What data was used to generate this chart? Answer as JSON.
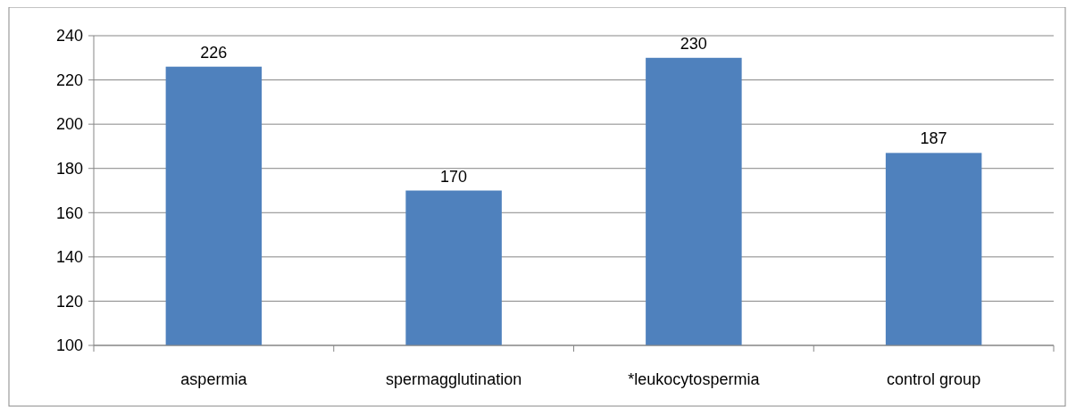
{
  "chart_data": {
    "type": "bar",
    "categories": [
      "aspermia",
      "spermagglutination",
      "*leukocytospermia",
      "control group"
    ],
    "values": [
      226,
      170,
      230,
      187
    ],
    "color": "#4f81bd",
    "ylim": [
      100,
      240
    ],
    "yticks": [
      100,
      120,
      140,
      160,
      180,
      200,
      220,
      240
    ],
    "grid": "y",
    "data_labels": true
  }
}
